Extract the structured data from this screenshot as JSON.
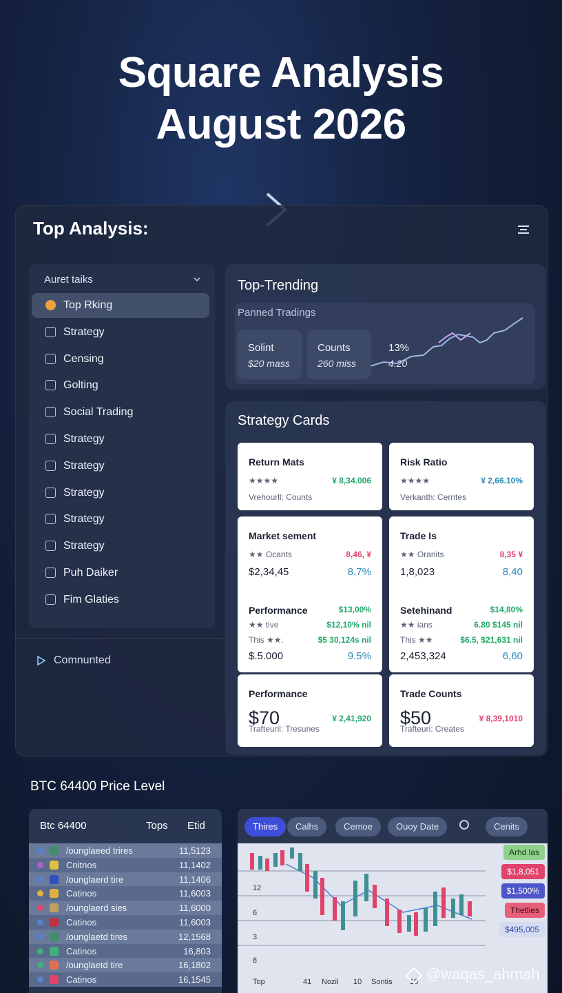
{
  "header": {
    "title_line1": "Square Analysis",
    "title_line2": "August 2026"
  },
  "panel": {
    "title": "Top Analysis:"
  },
  "sidebar": {
    "heading": "Auret taiks",
    "items": [
      "Top Rking",
      "Strategy",
      "Censing",
      "Golting",
      "Social Trading",
      "Strategy",
      "Strategy",
      "Strategy",
      "Strategy",
      "Strategy",
      "Puh Daiker",
      "Fim Glaties"
    ],
    "footer": "Comnunted"
  },
  "trending": {
    "title": "Top-Trending",
    "subtitle": "Panned Tradings",
    "stats": [
      {
        "label": "Solint",
        "value": "$20 mass"
      },
      {
        "label": "Counts",
        "value": "260 miss"
      },
      {
        "label": "13%",
        "value": "4.20"
      }
    ]
  },
  "strategy": {
    "title": "Strategy Cards",
    "cards": [
      {
        "title": "Return Mats",
        "rows": [
          [
            "★★★★",
            "¥ 8,34.006"
          ],
          [
            "Vrehourll: Counts",
            ""
          ]
        ]
      },
      {
        "title": "Risk Ratio",
        "rows": [
          [
            "★★★★",
            "¥ 2,66.10%"
          ],
          [
            "Verkanth: Cerntes",
            ""
          ]
        ]
      },
      {
        "title": "Market sement",
        "rows": [
          [
            "★★ Ocants",
            "8,46, ¥"
          ],
          [
            "$2,34,45",
            "8,7%"
          ]
        ]
      },
      {
        "title": "Trade Is",
        "rows": [
          [
            "★★ Oranits",
            "8,35 ¥"
          ],
          [
            "1,8,023",
            "8,40"
          ]
        ]
      },
      {
        "title": "Performance",
        "rows": [
          [
            "",
            "$13,00%"
          ],
          [
            "★★ tive",
            "$12,10% nil"
          ],
          [
            "This ★★.",
            "$5 30,124s nil"
          ],
          [
            "$.5.000",
            "9.5%"
          ]
        ]
      },
      {
        "title": "Setehinand",
        "rows": [
          [
            "",
            "$14,80%"
          ],
          [
            "★★ ians",
            "6.80 $145 nil"
          ],
          [
            "This ★★",
            "$6.5, $21,631 nil"
          ],
          [
            "2,453,324",
            "6,60"
          ]
        ]
      },
      {
        "title": "Performance",
        "rows": [
          [
            "$70",
            "¥ 2,41,920"
          ],
          [
            "Trafteuril: Tresunes",
            ""
          ]
        ]
      },
      {
        "title": "Trade Counts",
        "rows": [
          [
            "$50",
            "¥ 8,39,1010"
          ],
          [
            "Trafteuri: Creates",
            ""
          ]
        ]
      }
    ]
  },
  "btc": {
    "title": "BTC 64400 Price Level",
    "table": {
      "headers": [
        "Btc 64400",
        "Tops",
        "Etid"
      ],
      "rows": [
        [
          "/ounglaeed trires",
          "11,5123"
        ],
        [
          "Cnitnos",
          "11,1402"
        ],
        [
          "/ounglaerd tire",
          "11,1406"
        ],
        [
          "Catinos",
          "11,6003"
        ],
        [
          "/ounglaerd sies",
          "11,6000"
        ],
        [
          "Catinos",
          "11,6003"
        ],
        [
          "/ounglaetd tires",
          "12,1568"
        ],
        [
          "Catinos",
          "16,803"
        ],
        [
          "/ounglaetd tire",
          "16,1802"
        ],
        [
          "Catinos",
          "16,1545"
        ]
      ]
    },
    "chart": {
      "tabs": [
        "Thires",
        "Calhs",
        "Cemoe",
        "Ouoy Date",
        "Cenits"
      ],
      "y_labels": [
        "12",
        "6",
        "3",
        "8"
      ],
      "x_labels": [
        "Top",
        "41",
        "Nozil",
        "10",
        "Sontis",
        "10"
      ],
      "tags": [
        "Arhd las",
        "$1,8,051",
        "$1,500%",
        "Thetlies",
        "$495,005"
      ]
    }
  },
  "watermark": "@waqas_ahmah"
}
